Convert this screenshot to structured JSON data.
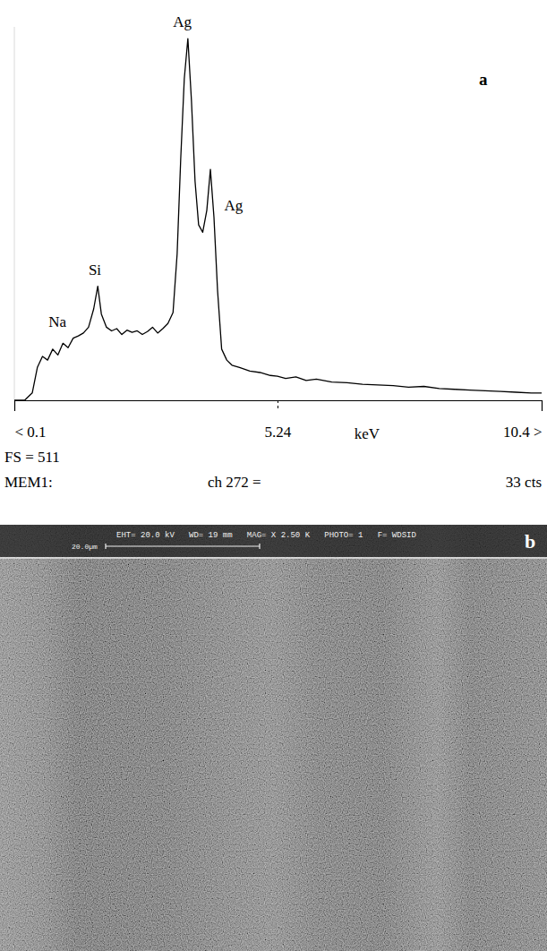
{
  "chart_data": {
    "type": "line",
    "panel_label": "a",
    "x": [
      0.1,
      0.3,
      0.45,
      0.55,
      0.65,
      0.75,
      0.85,
      0.95,
      1.05,
      1.15,
      1.25,
      1.35,
      1.45,
      1.55,
      1.65,
      1.73,
      1.8,
      1.9,
      2.0,
      2.1,
      2.2,
      2.3,
      2.4,
      2.5,
      2.6,
      2.7,
      2.8,
      2.9,
      3.0,
      3.1,
      3.2,
      3.28,
      3.35,
      3.42,
      3.49,
      3.56,
      3.63,
      3.7,
      3.78,
      3.86,
      3.93,
      4.0,
      4.07,
      4.15,
      4.25,
      4.35,
      4.5,
      4.7,
      4.9,
      5.1,
      5.24,
      5.4,
      5.6,
      5.8,
      6.0,
      6.3,
      6.6,
      6.9,
      7.2,
      7.5,
      7.8,
      8.1,
      8.4,
      8.7,
      9.0,
      9.3,
      9.6,
      9.9,
      10.2,
      10.4
    ],
    "values": [
      0,
      0,
      10,
      45,
      60,
      55,
      70,
      62,
      78,
      72,
      85,
      88,
      92,
      100,
      125,
      156,
      118,
      100,
      95,
      98,
      90,
      96,
      93,
      95,
      90,
      94,
      100,
      92,
      98,
      105,
      120,
      200,
      330,
      440,
      495,
      410,
      300,
      240,
      230,
      260,
      316,
      250,
      150,
      70,
      55,
      48,
      45,
      40,
      38,
      34,
      33,
      30,
      32,
      27,
      29,
      25,
      24,
      22,
      21,
      20,
      18,
      19,
      16,
      15,
      14,
      13,
      12,
      11,
      10,
      10
    ],
    "color": "#000000",
    "xlim": [
      0.1,
      10.4
    ],
    "ylim": [
      0,
      511
    ],
    "xticks": [
      {
        "value": 0.1,
        "label": "< 0.1"
      },
      5.24,
      {
        "value": 10.4,
        "label": "10.4 >"
      }
    ],
    "x_label": "keV",
    "tick_labels": "x",
    "annotations": [
      {
        "text": "Na",
        "x": 0.77,
        "y": 100
      },
      {
        "text": "Si",
        "x": 1.55,
        "y": 172
      },
      {
        "text": "Ag",
        "x": 3.2,
        "y": 511
      },
      {
        "text": "Ag",
        "x": 4.2,
        "y": 260
      }
    ],
    "readouts": [
      "FS = 511",
      "MEM1:",
      "ch 272 =",
      "33 cts"
    ]
  },
  "micrograph": {
    "panel_label": "b",
    "header": "EHT= 20.0 kV   WD= 19 mm   MAG= X 2.50 K   PHOTO= 1   F= WDSID",
    "scale_bar": "20.0µm"
  }
}
